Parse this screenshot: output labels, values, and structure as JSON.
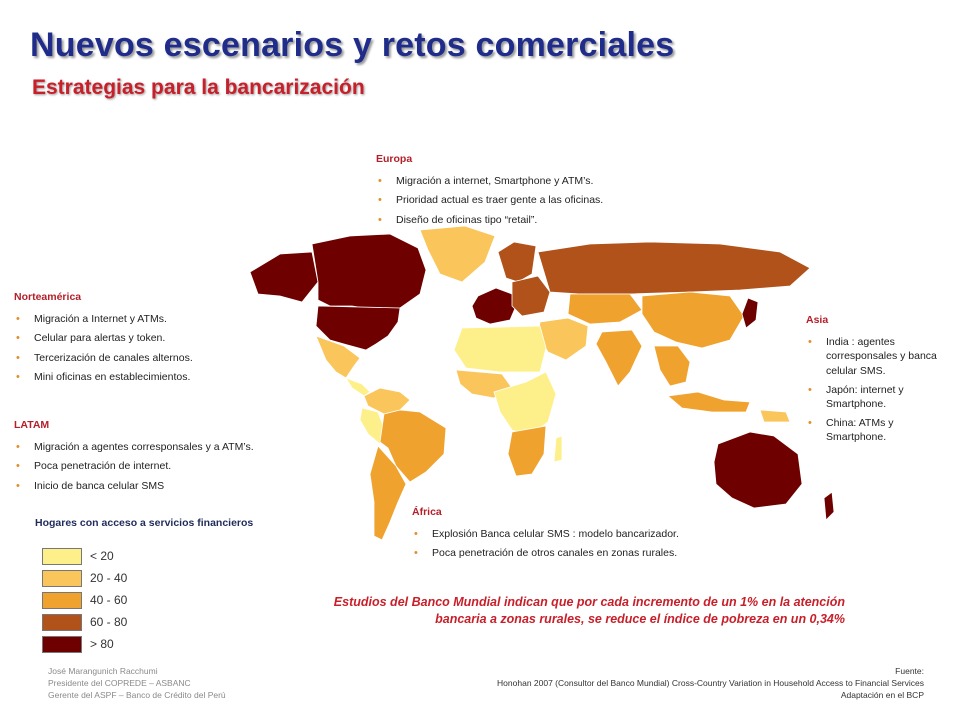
{
  "header": {
    "title": "Nuevos escenarios y retos comerciales",
    "subtitle": "Estrategias para la bancarización"
  },
  "regions": {
    "europa": {
      "title": "Europa",
      "items": [
        "Migración a internet, Smartphone y  ATM’s.",
        "Prioridad actual es traer gente a las oficinas.",
        "Diseño de oficinas tipo “retail”."
      ]
    },
    "norteamerica": {
      "title": "Norteamérica",
      "items": [
        "Migración a Internet y ATMs.",
        "Celular para alertas y  token.",
        "Tercerización de canales alternos.",
        "Mini oficinas en establecimientos."
      ]
    },
    "latam": {
      "title": "LATAM",
      "items": [
        "Migración a agentes corresponsales y a ATM’s.",
        "Poca penetración de internet.",
        "Inicio de banca celular SMS"
      ]
    },
    "asia": {
      "title": "Asia",
      "items": [
        "India : agentes corresponsales y banca celular SMS.",
        "Japón: internet y Smartphone.",
        "China: ATMs y Smartphone."
      ]
    },
    "africa": {
      "title": "África",
      "items": [
        "Explosión Banca celular SMS : modelo bancarizador.",
        "Poca penetración de otros canales en zonas rurales."
      ]
    }
  },
  "legend": {
    "title": "Hogares con acceso a servicios financieros",
    "items": [
      {
        "label": "< 20",
        "color": "#fdf08a"
      },
      {
        "label": "20 - 40",
        "color": "#fac55a"
      },
      {
        "label": "40 - 60",
        "color": "#f0a22e"
      },
      {
        "label": "60 - 80",
        "color": "#b0521a"
      },
      {
        "label": "> 80",
        "color": "#6e0000"
      }
    ]
  },
  "study": "Estudios del Banco Mundial indican que por cada incremento de un 1% en la atención bancaria a zonas rurales, se reduce el índice de pobreza en un 0,34%",
  "author": [
    "José Marangunich Racchumi",
    "Presidente del COPREDE – ASBANC",
    "Gerente del ASPF – Banco de Crédito del Perú"
  ],
  "source": [
    "Fuente:",
    "Honohan 2007 (Consultor del Banco Mundial)  Cross-Country Variation in Household Access to Financial Services",
    "Adaptación en el BCP"
  ]
}
